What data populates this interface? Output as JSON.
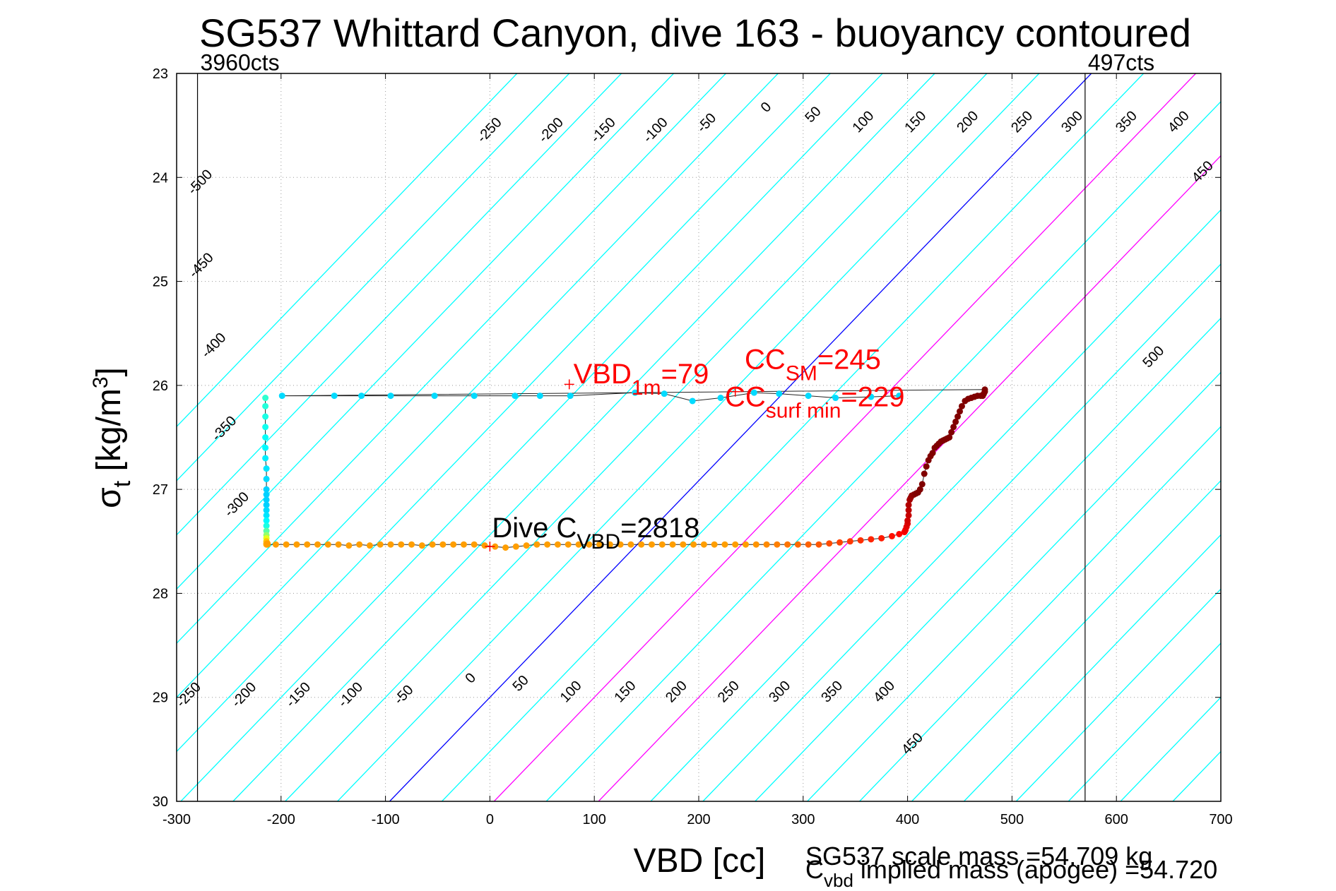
{
  "chart_data": {
    "type": "scatter",
    "title": "SG537 Whittard Canyon, dive 163 - buoyancy contoured",
    "xlabel": "VBD [cc]",
    "ylabel": {
      "base": "σ",
      "sub": "t",
      "rest": " [kg/m",
      "sup": "3",
      "end": "]"
    },
    "xlim": [
      -300,
      700
    ],
    "ylim": [
      30,
      23
    ],
    "y_reversed": true,
    "grid": true,
    "x_ticks": [
      "-300",
      "-200",
      "-100",
      "0",
      "100",
      "200",
      "300",
      "400",
      "500",
      "600",
      "700"
    ],
    "y_ticks": [
      "23",
      "24",
      "25",
      "26",
      "27",
      "28",
      "29",
      "30"
    ],
    "contour_slope_cc_per_sigma": -96,
    "contours": [
      -550,
      -500,
      -450,
      -400,
      -350,
      -300,
      -250,
      -200,
      -150,
      -100,
      -50,
      0,
      50,
      100,
      150,
      200,
      250,
      300,
      350,
      400,
      450,
      500,
      550,
      600,
      650,
      700,
      750
    ],
    "contour_colors": {
      "default": "#00ffff",
      "zero": "#0000ff",
      "highlight": "#ff00ff"
    },
    "highlight_contours": [
      100,
      200
    ],
    "contour_labels": [
      {
        "text": "-500",
        "x": -277,
        "y": 24.05
      },
      {
        "text": "-450",
        "x": -276,
        "y": 24.85
      },
      {
        "text": "-400",
        "x": -264,
        "y": 25.62
      },
      {
        "text": "-350",
        "x": -254,
        "y": 26.42
      },
      {
        "text": "-300",
        "x": -242,
        "y": 27.15
      },
      {
        "text": "-250",
        "x": 0,
        "y": 23.55
      },
      {
        "text": "-200",
        "x": 59,
        "y": 23.55
      },
      {
        "text": "-150",
        "x": 109,
        "y": 23.55
      },
      {
        "text": "-100",
        "x": 159,
        "y": 23.55
      },
      {
        "text": "-50",
        "x": 208,
        "y": 23.48
      },
      {
        "text": "0",
        "x": 265,
        "y": 23.33
      },
      {
        "text": "50",
        "x": 310,
        "y": 23.4
      },
      {
        "text": "100",
        "x": 358,
        "y": 23.47
      },
      {
        "text": "150",
        "x": 408,
        "y": 23.47
      },
      {
        "text": "200",
        "x": 458,
        "y": 23.47
      },
      {
        "text": "250",
        "x": 510,
        "y": 23.47
      },
      {
        "text": "300",
        "x": 558,
        "y": 23.47
      },
      {
        "text": "350",
        "x": 610,
        "y": 23.47
      },
      {
        "text": "400",
        "x": 660,
        "y": 23.47
      },
      {
        "text": "450",
        "x": 683,
        "y": 23.95
      },
      {
        "text": "500",
        "x": 636,
        "y": 25.73
      },
      {
        "text": "-250",
        "x": -288,
        "y": 28.98
      },
      {
        "text": "-200",
        "x": -235,
        "y": 28.98
      },
      {
        "text": "-150",
        "x": -183,
        "y": 28.98
      },
      {
        "text": "-100",
        "x": -133,
        "y": 28.98
      },
      {
        "text": "-50",
        "x": -82,
        "y": 28.98
      },
      {
        "text": "0",
        "x": -18,
        "y": 28.82
      },
      {
        "text": "50",
        "x": 30,
        "y": 28.87
      },
      {
        "text": "100",
        "x": 78,
        "y": 28.95
      },
      {
        "text": "150",
        "x": 130,
        "y": 28.95
      },
      {
        "text": "200",
        "x": 179,
        "y": 28.95
      },
      {
        "text": "250",
        "x": 229,
        "y": 28.95
      },
      {
        "text": "300",
        "x": 278,
        "y": 28.95
      },
      {
        "text": "350",
        "x": 328,
        "y": 28.95
      },
      {
        "text": "400",
        "x": 378,
        "y": 28.95
      },
      {
        "text": "450",
        "x": 405,
        "y": 29.45
      }
    ],
    "vertical_lines": [
      {
        "x": -280,
        "label": "3960cts",
        "label_y": 22.97
      },
      {
        "x": 570,
        "label": "497cts",
        "label_y": 22.97
      }
    ],
    "track": {
      "line_color": "#222222",
      "x": [
        -215,
        -215,
        -215,
        -215,
        -215,
        -215,
        -215,
        -214,
        -214,
        -214,
        -214,
        -214,
        -214,
        -214,
        -214,
        -214,
        -214,
        -214,
        -214,
        -214,
        -214,
        -214,
        -214,
        -213,
        -213,
        -205,
        -195,
        -185,
        -175,
        -165,
        -155,
        -145,
        -135,
        -125,
        -115,
        -105,
        -95,
        -85,
        -75,
        -65,
        -55,
        -45,
        -35,
        -25,
        -15,
        -5,
        5,
        15,
        25,
        35,
        45,
        55,
        65,
        75,
        85,
        95,
        105,
        115,
        125,
        135,
        145,
        155,
        165,
        175,
        185,
        195,
        205,
        215,
        225,
        235,
        245,
        255,
        265,
        275,
        285,
        295,
        305,
        315,
        325,
        335,
        345,
        355,
        365,
        375,
        385,
        392,
        397,
        398,
        399,
        400,
        400,
        401,
        401,
        401,
        402,
        403,
        404,
        406,
        408,
        410,
        412,
        414,
        416,
        418,
        420,
        422,
        424,
        426,
        428,
        430,
        432,
        434,
        436,
        438,
        440,
        442,
        444,
        446,
        448,
        450,
        452,
        455,
        458,
        461,
        464,
        467,
        470,
        472,
        473,
        474,
        474,
        -199,
        -149,
        -123,
        -95,
        -53,
        -15,
        24,
        48,
        77,
        139,
        167,
        194,
        221,
        253,
        277,
        305,
        331,
        365,
        392
      ],
      "y": [
        26.12,
        26.2,
        26.3,
        26.4,
        26.5,
        26.6,
        26.7,
        26.8,
        26.9,
        27,
        27.05,
        27.1,
        27.15,
        27.2,
        27.25,
        27.3,
        27.35,
        27.4,
        27.44,
        27.47,
        27.5,
        27.52,
        27.53,
        27.52,
        27.53,
        27.53,
        27.53,
        27.53,
        27.53,
        27.53,
        27.53,
        27.53,
        27.54,
        27.53,
        27.54,
        27.53,
        27.53,
        27.53,
        27.53,
        27.54,
        27.53,
        27.53,
        27.53,
        27.53,
        27.53,
        27.54,
        27.55,
        27.56,
        27.55,
        27.54,
        27.53,
        27.53,
        27.53,
        27.53,
        27.53,
        27.53,
        27.53,
        27.53,
        27.53,
        27.53,
        27.53,
        27.53,
        27.53,
        27.53,
        27.53,
        27.53,
        27.53,
        27.53,
        27.53,
        27.53,
        27.53,
        27.53,
        27.53,
        27.53,
        27.53,
        27.53,
        27.53,
        27.53,
        27.52,
        27.51,
        27.5,
        27.49,
        27.48,
        27.47,
        27.45,
        27.43,
        27.41,
        27.39,
        27.36,
        27.33,
        27.3,
        27.25,
        27.2,
        27.15,
        27.1,
        27.08,
        27.06,
        27.05,
        27.04,
        27.03,
        27.0,
        26.95,
        26.85,
        26.78,
        26.72,
        26.68,
        26.65,
        26.6,
        26.58,
        26.56,
        26.54,
        26.53,
        26.52,
        26.51,
        26.5,
        26.45,
        26.4,
        26.35,
        26.3,
        26.25,
        26.2,
        26.15,
        26.13,
        26.12,
        26.11,
        26.1,
        26.1,
        26.1,
        26.08,
        26.06,
        26.04,
        26.1,
        26.1,
        26.1,
        26.1,
        26.1,
        26.1,
        26.1,
        26.1,
        26.1,
        26.07,
        26.08,
        26.15,
        26.12,
        26.07,
        26.08,
        26.1,
        26.12,
        26.11,
        26.1
      ],
      "c": [
        0.42,
        0.41,
        0.4,
        0.39,
        0.38,
        0.37,
        0.36,
        0.35,
        0.34,
        0.33,
        0.33,
        0.33,
        0.33,
        0.34,
        0.35,
        0.37,
        0.4,
        0.46,
        0.52,
        0.6,
        0.68,
        0.7,
        0.71,
        0.72,
        0.72,
        0.72,
        0.72,
        0.72,
        0.72,
        0.72,
        0.72,
        0.72,
        0.72,
        0.72,
        0.72,
        0.72,
        0.72,
        0.72,
        0.72,
        0.72,
        0.72,
        0.72,
        0.72,
        0.72,
        0.72,
        0.72,
        0.72,
        0.72,
        0.72,
        0.72,
        0.72,
        0.72,
        0.72,
        0.72,
        0.72,
        0.72,
        0.72,
        0.72,
        0.72,
        0.72,
        0.72,
        0.72,
        0.72,
        0.72,
        0.72,
        0.72,
        0.72,
        0.72,
        0.72,
        0.72,
        0.72,
        0.73,
        0.74,
        0.75,
        0.76,
        0.77,
        0.78,
        0.79,
        0.8,
        0.81,
        0.82,
        0.83,
        0.84,
        0.85,
        0.86,
        0.87,
        0.88,
        0.89,
        0.9,
        0.91,
        0.92,
        0.93,
        0.94,
        0.95,
        0.96,
        0.97,
        0.98,
        0.99,
        1.0,
        1.0,
        1.0,
        1.0,
        1.0,
        1.0,
        1.0,
        1.0,
        1.0,
        1.0,
        1.0,
        1.0,
        1.0,
        1.0,
        1.0,
        1.0,
        1.0,
        1.0,
        1.0,
        1.0,
        1.0,
        1.0,
        1.0,
        1.0,
        1.0,
        1.0,
        1.0,
        1.0,
        1.0,
        1.0,
        1.0,
        1.0,
        1.0,
        0.34,
        0.34,
        0.34,
        0.34,
        0.34,
        0.34,
        0.34,
        0.34,
        0.34,
        0.34,
        0.34,
        0.34,
        0.34,
        0.34,
        0.34,
        0.34,
        0.34,
        0.34,
        0.34
      ]
    },
    "markers": [
      {
        "x": 76,
        "y": 25.99
      },
      {
        "x": 235,
        "y": 26.06
      },
      {
        "x": 0,
        "y": 27.55
      }
    ],
    "annotations": [
      {
        "name": "vbd-1m",
        "x": 80,
        "y": 25.98,
        "color": "#ff0000",
        "parts": [
          {
            "t": "VBD",
            "s": "n"
          },
          {
            "t": "1m",
            "s": "sub"
          },
          {
            "t": "=79",
            "s": "n"
          }
        ]
      },
      {
        "name": "cc-sm",
        "x": 244,
        "y": 25.84,
        "color": "#ff0000",
        "parts": [
          {
            "t": "CC",
            "s": "n"
          },
          {
            "t": "SM",
            "s": "sub"
          },
          {
            "t": "=245",
            "s": "n"
          }
        ]
      },
      {
        "name": "cc-surf-min",
        "x": 225,
        "y": 26.2,
        "color": "#ff0000",
        "parts": [
          {
            "t": "CC",
            "s": "n"
          },
          {
            "t": "surf min",
            "s": "sub"
          },
          {
            "t": "=229",
            "s": "n"
          }
        ]
      },
      {
        "name": "dive-cvbd",
        "x": 2,
        "y": 27.46,
        "color": "#000000",
        "parts": [
          {
            "t": "Dive C",
            "s": "n"
          },
          {
            "t": "VBD",
            "s": "sub"
          },
          {
            "t": "=2818",
            "s": "n"
          }
        ]
      }
    ],
    "footer": {
      "scale_mass": "SG537 scale mass =54.709 kg",
      "implied_base": "C",
      "implied_sub": "vbd",
      "implied_rest": " implied mass (apogee) =54.720"
    }
  }
}
